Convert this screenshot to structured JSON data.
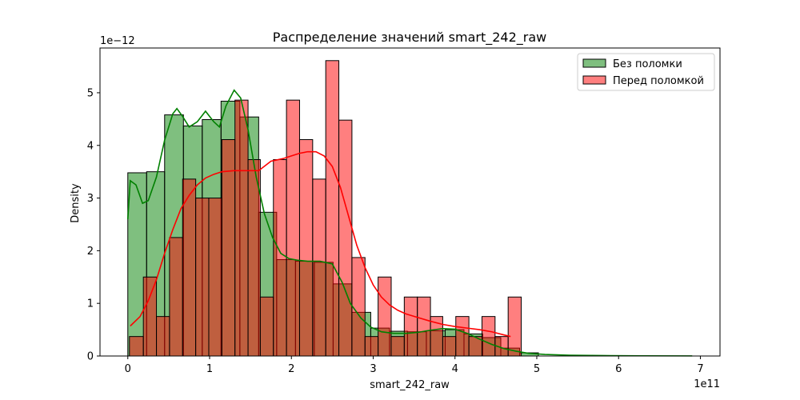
{
  "chart_data": {
    "type": "histogram",
    "title": "Распределение значений smart_242_raw",
    "xlabel": "smart_242_raw",
    "ylabel": "Density",
    "x_offset_label": "1e11",
    "y_offset_label": "1e−12",
    "xlim": [
      -0.34,
      7.24
    ],
    "ylim": [
      0,
      5.85
    ],
    "x_ticks": [
      0,
      1,
      2,
      3,
      4,
      5,
      6,
      7
    ],
    "x_tick_labels": [
      "0",
      "1",
      "2",
      "3",
      "4",
      "5",
      "6",
      "7"
    ],
    "y_ticks": [
      0,
      1,
      2,
      3,
      4,
      5
    ],
    "y_tick_labels": [
      "0",
      "1",
      "2",
      "3",
      "4",
      "5"
    ],
    "grid": false,
    "legend_position": "top-right",
    "series": [
      {
        "name": "Без поломки",
        "color": "#008000",
        "fill": "rgba(0,128,0,0.5)",
        "bins": [
          [
            0.0,
            0.23,
            3.48
          ],
          [
            0.23,
            0.45,
            3.5
          ],
          [
            0.45,
            0.68,
            4.58
          ],
          [
            0.68,
            0.91,
            4.37
          ],
          [
            0.91,
            1.14,
            4.49
          ],
          [
            1.14,
            1.37,
            4.84
          ],
          [
            1.37,
            1.6,
            4.54
          ],
          [
            1.6,
            1.82,
            2.73
          ],
          [
            1.82,
            2.05,
            1.83
          ],
          [
            2.05,
            2.28,
            1.8
          ],
          [
            2.28,
            2.51,
            1.78
          ],
          [
            2.51,
            2.74,
            1.37
          ],
          [
            2.74,
            2.97,
            0.83
          ],
          [
            2.97,
            3.2,
            0.53
          ],
          [
            3.2,
            3.42,
            0.47
          ],
          [
            3.42,
            3.65,
            0.46
          ],
          [
            3.65,
            3.88,
            0.48
          ],
          [
            3.88,
            4.11,
            0.5
          ],
          [
            4.11,
            4.34,
            0.42
          ],
          [
            4.34,
            4.56,
            0.35
          ],
          [
            4.56,
            4.79,
            0.15
          ],
          [
            4.79,
            5.02,
            0.06
          ]
        ],
        "kde": [
          [
            0.0,
            2.6
          ],
          [
            0.03,
            3.33
          ],
          [
            0.1,
            3.25
          ],
          [
            0.18,
            2.9
          ],
          [
            0.25,
            2.95
          ],
          [
            0.35,
            3.4
          ],
          [
            0.45,
            4.1
          ],
          [
            0.55,
            4.6
          ],
          [
            0.6,
            4.7
          ],
          [
            0.67,
            4.55
          ],
          [
            0.75,
            4.35
          ],
          [
            0.85,
            4.45
          ],
          [
            0.95,
            4.65
          ],
          [
            1.05,
            4.45
          ],
          [
            1.12,
            4.35
          ],
          [
            1.2,
            4.75
          ],
          [
            1.3,
            5.05
          ],
          [
            1.38,
            4.9
          ],
          [
            1.47,
            4.3
          ],
          [
            1.57,
            3.4
          ],
          [
            1.67,
            2.7
          ],
          [
            1.77,
            2.25
          ],
          [
            1.87,
            1.95
          ],
          [
            1.97,
            1.85
          ],
          [
            2.07,
            1.82
          ],
          [
            2.2,
            1.8
          ],
          [
            2.35,
            1.8
          ],
          [
            2.5,
            1.75
          ],
          [
            2.62,
            1.4
          ],
          [
            2.72,
            1.0
          ],
          [
            2.85,
            0.72
          ],
          [
            2.97,
            0.55
          ],
          [
            3.1,
            0.46
          ],
          [
            3.25,
            0.43
          ],
          [
            3.4,
            0.43
          ],
          [
            3.55,
            0.45
          ],
          [
            3.7,
            0.49
          ],
          [
            3.85,
            0.52
          ],
          [
            4.0,
            0.51
          ],
          [
            4.15,
            0.43
          ],
          [
            4.3,
            0.32
          ],
          [
            4.45,
            0.22
          ],
          [
            4.6,
            0.14
          ],
          [
            4.75,
            0.09
          ],
          [
            4.9,
            0.05
          ],
          [
            5.1,
            0.03
          ],
          [
            5.4,
            0.015
          ],
          [
            5.8,
            0.008
          ],
          [
            6.3,
            0.004
          ],
          [
            6.9,
            0.002
          ]
        ]
      },
      {
        "name": "Перед поломкой",
        "color": "#ff0000",
        "fill": "rgba(255,0,0,0.5)",
        "bins": [
          [
            0.02,
            0.19,
            0.37
          ],
          [
            0.19,
            0.35,
            1.5
          ],
          [
            0.35,
            0.51,
            0.75
          ],
          [
            0.51,
            0.67,
            2.25
          ],
          [
            0.67,
            0.83,
            3.36
          ],
          [
            0.83,
            0.99,
            3.0
          ],
          [
            0.99,
            1.15,
            3.0
          ],
          [
            1.15,
            1.31,
            4.11
          ],
          [
            1.31,
            1.47,
            4.86
          ],
          [
            1.47,
            1.62,
            3.73
          ],
          [
            1.62,
            1.78,
            1.12
          ],
          [
            1.78,
            1.94,
            3.73
          ],
          [
            1.94,
            2.1,
            4.86
          ],
          [
            2.1,
            2.26,
            4.11
          ],
          [
            2.26,
            2.42,
            3.36
          ],
          [
            2.42,
            2.58,
            5.61
          ],
          [
            2.58,
            2.74,
            4.48
          ],
          [
            2.74,
            2.9,
            1.87
          ],
          [
            2.9,
            3.06,
            0.37
          ],
          [
            3.06,
            3.22,
            1.5
          ],
          [
            3.22,
            3.38,
            0.37
          ],
          [
            3.38,
            3.54,
            1.12
          ],
          [
            3.54,
            3.7,
            1.12
          ],
          [
            3.7,
            3.85,
            0.75
          ],
          [
            3.85,
            4.01,
            0.37
          ],
          [
            4.01,
            4.17,
            0.75
          ],
          [
            4.17,
            4.33,
            0.37
          ],
          [
            4.33,
            4.49,
            0.75
          ],
          [
            4.49,
            4.65,
            0.37
          ],
          [
            4.65,
            4.81,
            1.12
          ]
        ],
        "kde": [
          [
            0.03,
            0.57
          ],
          [
            0.15,
            0.75
          ],
          [
            0.25,
            1.05
          ],
          [
            0.35,
            1.45
          ],
          [
            0.45,
            1.95
          ],
          [
            0.55,
            2.4
          ],
          [
            0.65,
            2.8
          ],
          [
            0.75,
            3.05
          ],
          [
            0.85,
            3.25
          ],
          [
            0.95,
            3.38
          ],
          [
            1.05,
            3.45
          ],
          [
            1.15,
            3.5
          ],
          [
            1.3,
            3.52
          ],
          [
            1.45,
            3.52
          ],
          [
            1.6,
            3.52
          ],
          [
            1.75,
            3.7
          ],
          [
            1.9,
            3.75
          ],
          [
            2.0,
            3.8
          ],
          [
            2.1,
            3.85
          ],
          [
            2.2,
            3.88
          ],
          [
            2.3,
            3.88
          ],
          [
            2.4,
            3.8
          ],
          [
            2.5,
            3.6
          ],
          [
            2.6,
            3.2
          ],
          [
            2.7,
            2.65
          ],
          [
            2.8,
            2.1
          ],
          [
            2.9,
            1.68
          ],
          [
            3.0,
            1.35
          ],
          [
            3.1,
            1.12
          ],
          [
            3.2,
            0.97
          ],
          [
            3.3,
            0.87
          ],
          [
            3.4,
            0.8
          ],
          [
            3.55,
            0.73
          ],
          [
            3.7,
            0.66
          ],
          [
            3.85,
            0.6
          ],
          [
            4.0,
            0.56
          ],
          [
            4.15,
            0.53
          ],
          [
            4.3,
            0.5
          ],
          [
            4.45,
            0.46
          ],
          [
            4.6,
            0.4
          ],
          [
            4.68,
            0.37
          ]
        ]
      }
    ]
  }
}
